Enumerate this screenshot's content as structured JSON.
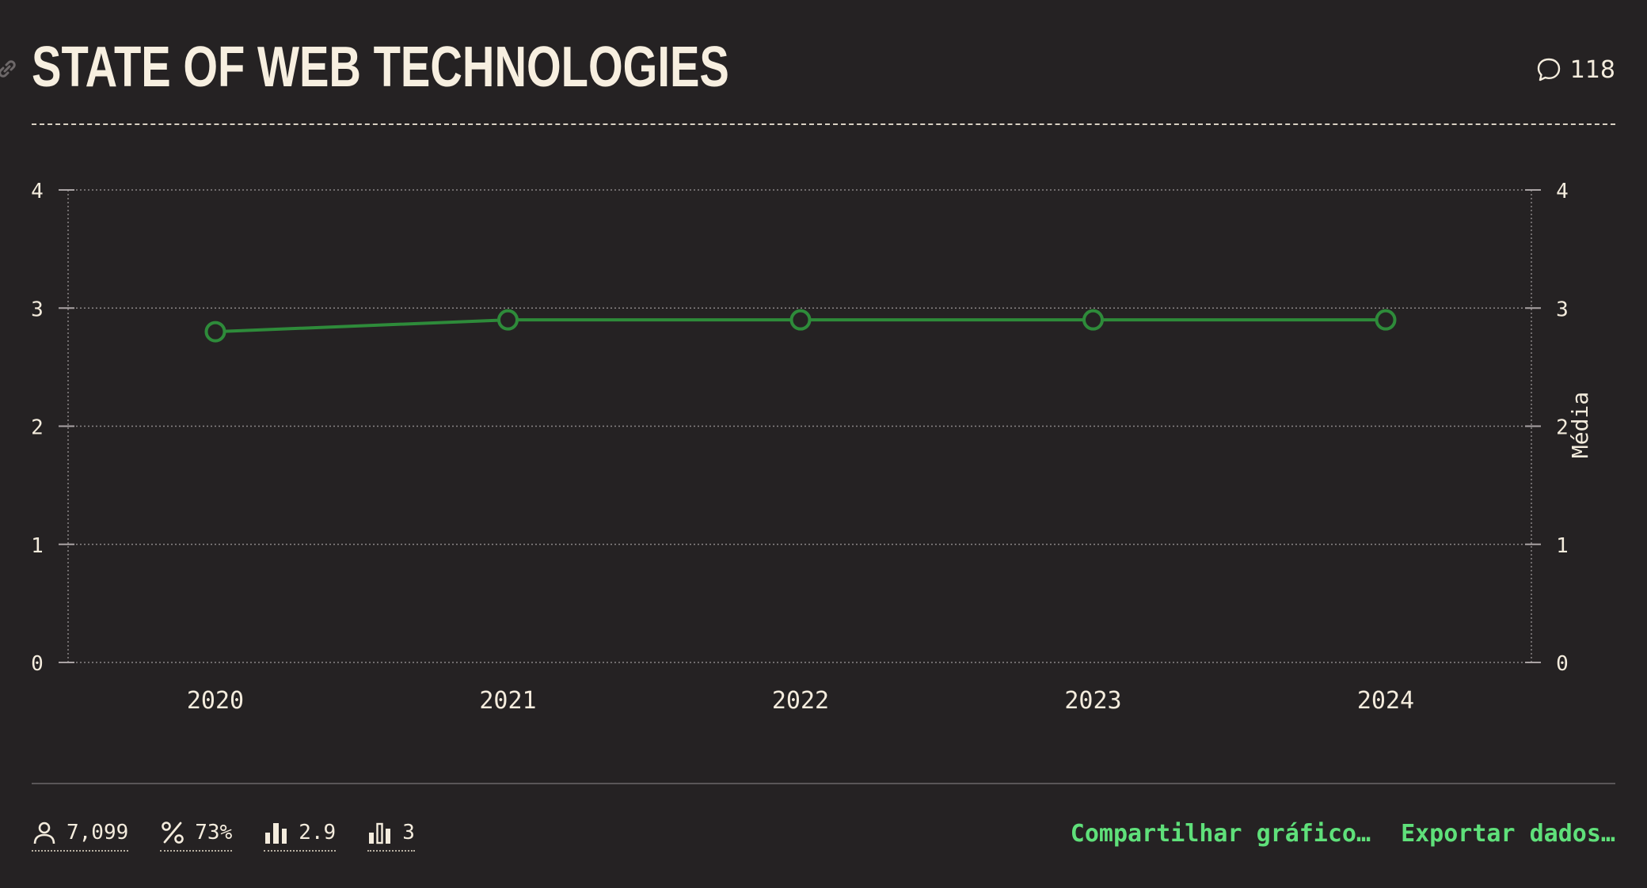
{
  "header": {
    "title": "STATE OF WEB TECHNOLOGIES",
    "comment_count": "118"
  },
  "icons": {
    "link": "link-icon",
    "comments": "speech-bubble-icon",
    "respondents": "user-icon",
    "percentage": "percent-icon",
    "average": "bar-chart-icon",
    "median": "bar-chart-outline-icon"
  },
  "colors": {
    "background": "#252223",
    "series": "#2e8b3a",
    "accent": "#5fe07a",
    "text": "#f4ecdd"
  },
  "chart_data": {
    "type": "line",
    "x": [
      "2020",
      "2021",
      "2022",
      "2023",
      "2024"
    ],
    "series": [
      {
        "values": [
          2.8,
          2.9,
          2.9,
          2.9,
          2.9
        ]
      }
    ],
    "ylim": [
      0,
      4
    ],
    "yticks": [
      "0",
      "1",
      "2",
      "3",
      "4"
    ],
    "y2label": "Média",
    "grid": true
  },
  "footer": {
    "stats": [
      {
        "icon": "user-icon",
        "value": "7,099"
      },
      {
        "icon": "percent-icon",
        "value": "73%"
      },
      {
        "icon": "bar-chart-icon",
        "value": "2.9"
      },
      {
        "icon": "bar-chart-outline-icon",
        "value": "3"
      }
    ],
    "share_label": "Compartilhar gráfico…",
    "export_label": "Exportar dados…"
  }
}
